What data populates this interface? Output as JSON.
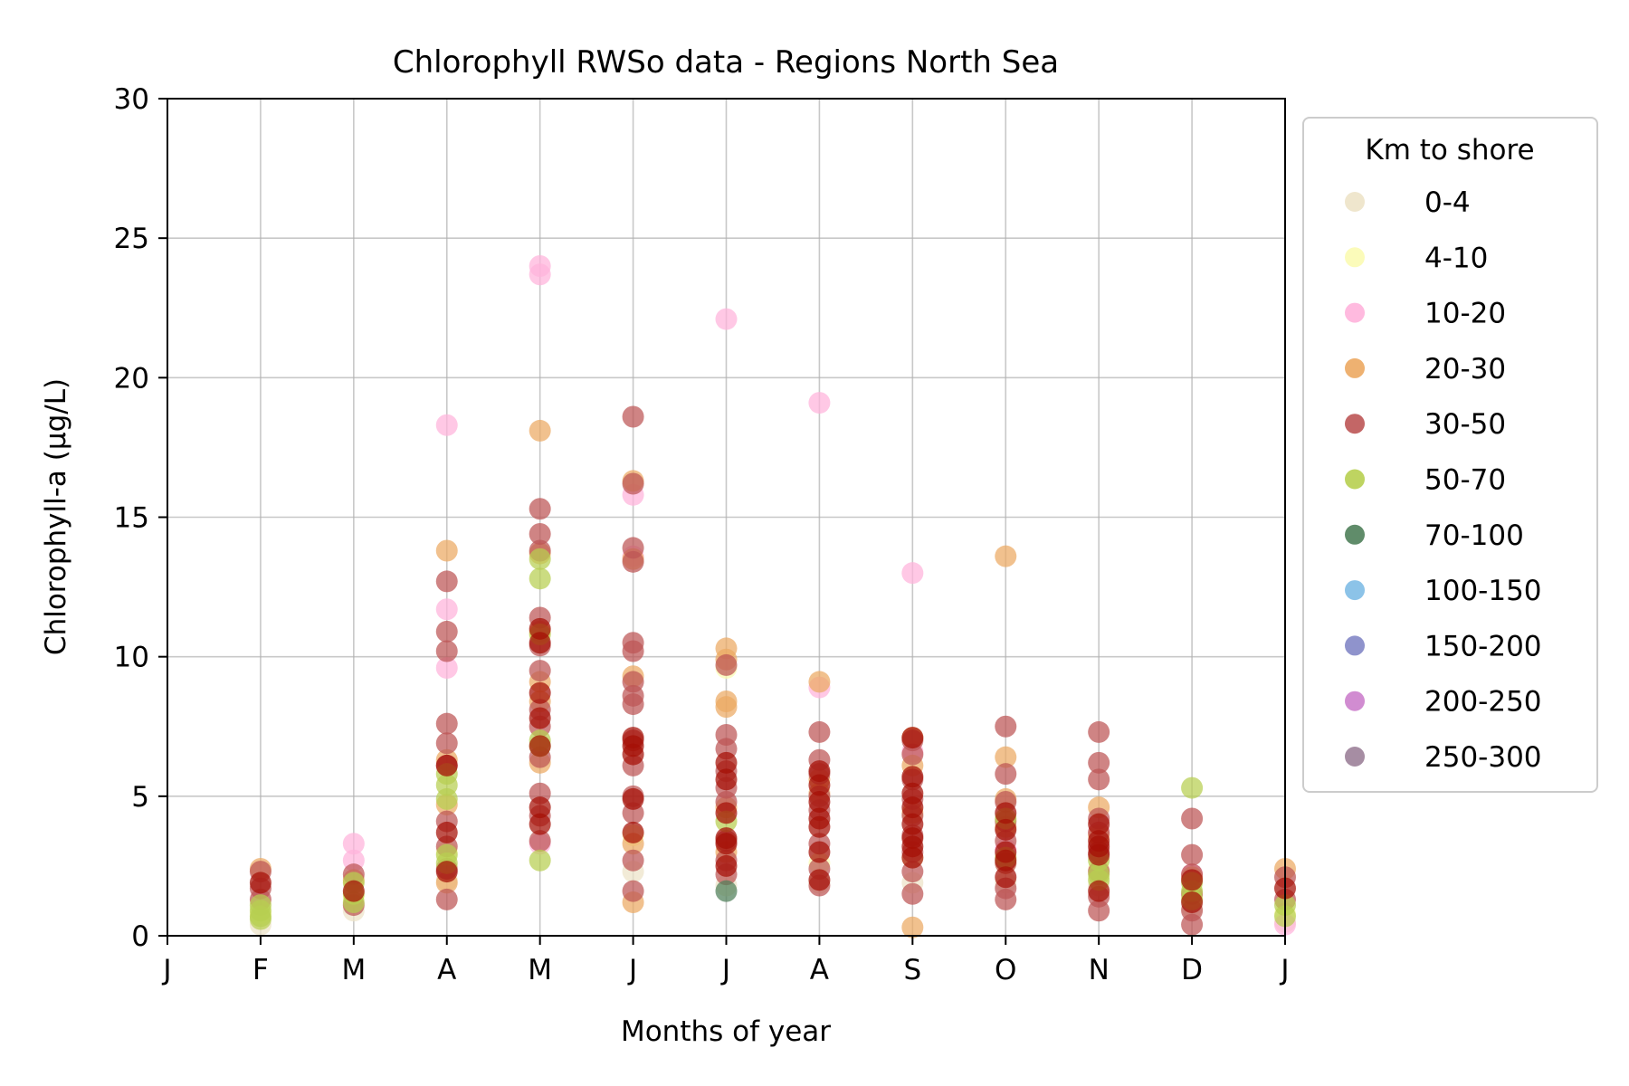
{
  "chart_data": {
    "type": "scatter",
    "title": "Chlorophyll RWSo data - Regions North Sea",
    "xlabel": "Months of year",
    "ylabel": "Chlorophyll-a (µg/L)",
    "xlim": [
      1,
      13
    ],
    "ylim": [
      0,
      30
    ],
    "x_ticks": [
      1,
      2,
      3,
      4,
      5,
      6,
      7,
      8,
      9,
      10,
      11,
      12,
      13
    ],
    "x_tick_labels": [
      "J",
      "F",
      "M",
      "A",
      "M",
      "J",
      "J",
      "A",
      "S",
      "O",
      "N",
      "D",
      "J"
    ],
    "y_ticks": [
      0,
      5,
      10,
      15,
      20,
      25,
      30
    ],
    "y_tick_labels": [
      "0",
      "5",
      "10",
      "15",
      "20",
      "25",
      "30"
    ],
    "grid": true,
    "legend": {
      "title": "Km to shore",
      "position": "outside-right"
    },
    "series": [
      {
        "name": "0-4",
        "color": "#ede3c8",
        "points": [
          [
            2.0,
            0.4
          ],
          [
            3.0,
            0.9
          ],
          [
            4.0,
            2.0
          ],
          [
            6.0,
            2.3
          ],
          [
            7.0,
            1.8
          ],
          [
            8.0,
            1.9
          ],
          [
            9.0,
            1.9
          ],
          [
            10.0,
            1.9
          ],
          [
            11.0,
            1.8
          ],
          [
            12.0,
            1.0
          ],
          [
            13.0,
            0.5
          ]
        ]
      },
      {
        "name": "4-10",
        "color": "#fbfbb2",
        "points": [
          [
            2.0,
            0.8
          ],
          [
            3.0,
            1.4
          ],
          [
            4.0,
            3.0
          ],
          [
            6.0,
            3.6
          ],
          [
            7.0,
            9.6
          ],
          [
            8.0,
            2.6
          ],
          [
            9.0,
            2.8
          ],
          [
            10.0,
            2.6
          ],
          [
            11.0,
            2.4
          ],
          [
            12.0,
            1.4
          ],
          [
            13.0,
            0.8
          ]
        ]
      },
      {
        "name": "10-20",
        "color": "#ffb3db",
        "points": [
          [
            3.0,
            3.3
          ],
          [
            3.0,
            2.7
          ],
          [
            4.0,
            18.3
          ],
          [
            4.0,
            11.7
          ],
          [
            4.0,
            9.6
          ],
          [
            5.0,
            24.0
          ],
          [
            5.0,
            23.7
          ],
          [
            5.0,
            3.3
          ],
          [
            6.0,
            15.8
          ],
          [
            6.0,
            13.6
          ],
          [
            7.0,
            22.1
          ],
          [
            8.0,
            19.1
          ],
          [
            8.0,
            8.9
          ],
          [
            9.0,
            13.0
          ],
          [
            9.0,
            6.6
          ],
          [
            10.0,
            3.1
          ],
          [
            11.0,
            3.7
          ],
          [
            12.0,
            2.2
          ],
          [
            13.0,
            0.4
          ]
        ]
      },
      {
        "name": "20-30",
        "color": "#eca962",
        "points": [
          [
            2.0,
            2.4
          ],
          [
            3.0,
            2.0
          ],
          [
            4.0,
            13.8
          ],
          [
            4.0,
            6.3
          ],
          [
            4.0,
            4.7
          ],
          [
            4.0,
            1.9
          ],
          [
            5.0,
            18.1
          ],
          [
            5.0,
            13.7
          ],
          [
            5.0,
            10.9
          ],
          [
            5.0,
            9.1
          ],
          [
            5.0,
            8.4
          ],
          [
            5.0,
            6.2
          ],
          [
            6.0,
            16.3
          ],
          [
            6.0,
            13.5
          ],
          [
            6.0,
            9.3
          ],
          [
            6.0,
            3.3
          ],
          [
            6.0,
            1.2
          ],
          [
            7.0,
            10.3
          ],
          [
            7.0,
            9.9
          ],
          [
            7.0,
            8.4
          ],
          [
            7.0,
            8.2
          ],
          [
            7.0,
            4.6
          ],
          [
            7.0,
            3.0
          ],
          [
            8.0,
            9.1
          ],
          [
            8.0,
            5.6
          ],
          [
            8.0,
            5.1
          ],
          [
            9.0,
            7.1
          ],
          [
            9.0,
            6.1
          ],
          [
            9.0,
            4.4
          ],
          [
            9.0,
            0.3
          ],
          [
            10.0,
            13.6
          ],
          [
            10.0,
            6.4
          ],
          [
            10.0,
            4.9
          ],
          [
            10.0,
            3.9
          ],
          [
            11.0,
            4.6
          ],
          [
            11.0,
            3.6
          ],
          [
            12.0,
            2.1
          ],
          [
            13.0,
            2.4
          ]
        ]
      },
      {
        "name": "30-50",
        "color": "#bd5555",
        "points": [
          [
            2.0,
            2.3
          ],
          [
            2.0,
            1.7
          ],
          [
            2.0,
            1.3
          ],
          [
            3.0,
            2.2
          ],
          [
            3.0,
            1.1
          ],
          [
            4.0,
            12.7
          ],
          [
            4.0,
            10.9
          ],
          [
            4.0,
            10.2
          ],
          [
            4.0,
            7.6
          ],
          [
            4.0,
            6.9
          ],
          [
            4.0,
            6.1
          ],
          [
            4.0,
            4.1
          ],
          [
            4.0,
            3.2
          ],
          [
            4.0,
            2.4
          ],
          [
            4.0,
            1.3
          ],
          [
            5.0,
            15.3
          ],
          [
            5.0,
            14.4
          ],
          [
            5.0,
            13.8
          ],
          [
            5.0,
            11.4
          ],
          [
            5.0,
            10.4
          ],
          [
            5.0,
            9.5
          ],
          [
            5.0,
            8.1
          ],
          [
            5.0,
            7.5
          ],
          [
            5.0,
            6.4
          ],
          [
            5.0,
            5.1
          ],
          [
            5.0,
            4.3
          ],
          [
            5.0,
            3.4
          ],
          [
            6.0,
            18.6
          ],
          [
            6.0,
            16.2
          ],
          [
            6.0,
            13.9
          ],
          [
            6.0,
            13.4
          ],
          [
            6.0,
            10.5
          ],
          [
            6.0,
            10.2
          ],
          [
            6.0,
            9.1
          ],
          [
            6.0,
            8.6
          ],
          [
            6.0,
            8.3
          ],
          [
            6.0,
            7.0
          ],
          [
            6.0,
            6.1
          ],
          [
            6.0,
            5.0
          ],
          [
            6.0,
            4.4
          ],
          [
            6.0,
            2.7
          ],
          [
            6.0,
            1.6
          ],
          [
            7.0,
            9.7
          ],
          [
            7.0,
            7.2
          ],
          [
            7.0,
            6.7
          ],
          [
            7.0,
            5.9
          ],
          [
            7.0,
            5.3
          ],
          [
            7.0,
            4.8
          ],
          [
            7.0,
            3.4
          ],
          [
            7.0,
            2.7
          ],
          [
            7.0,
            2.2
          ],
          [
            8.0,
            7.3
          ],
          [
            8.0,
            6.3
          ],
          [
            8.0,
            5.8
          ],
          [
            8.0,
            5.0
          ],
          [
            8.0,
            4.5
          ],
          [
            8.0,
            3.3
          ],
          [
            8.0,
            2.4
          ],
          [
            8.0,
            1.8
          ],
          [
            9.0,
            7.0
          ],
          [
            9.0,
            6.5
          ],
          [
            9.0,
            5.6
          ],
          [
            9.0,
            4.9
          ],
          [
            9.0,
            4.3
          ],
          [
            9.0,
            3.6
          ],
          [
            9.0,
            3.0
          ],
          [
            9.0,
            2.3
          ],
          [
            9.0,
            1.5
          ],
          [
            10.0,
            7.5
          ],
          [
            10.0,
            5.8
          ],
          [
            10.0,
            4.8
          ],
          [
            10.0,
            4.1
          ],
          [
            10.0,
            3.4
          ],
          [
            10.0,
            2.6
          ],
          [
            10.0,
            1.7
          ],
          [
            10.0,
            1.3
          ],
          [
            11.0,
            7.3
          ],
          [
            11.0,
            6.2
          ],
          [
            11.0,
            5.6
          ],
          [
            11.0,
            4.2
          ],
          [
            11.0,
            3.7
          ],
          [
            11.0,
            3.0
          ],
          [
            11.0,
            2.3
          ],
          [
            11.0,
            1.4
          ],
          [
            11.0,
            0.9
          ],
          [
            12.0,
            4.2
          ],
          [
            12.0,
            2.9
          ],
          [
            12.0,
            2.2
          ],
          [
            12.0,
            1.5
          ],
          [
            12.0,
            0.9
          ],
          [
            12.0,
            0.4
          ],
          [
            13.0,
            2.1
          ],
          [
            13.0,
            1.3
          ]
        ]
      },
      {
        "name": "50-70",
        "color": "#b7cf50",
        "points": [
          [
            2.0,
            1.1
          ],
          [
            2.0,
            0.9
          ],
          [
            2.0,
            0.7
          ],
          [
            2.0,
            0.6
          ],
          [
            3.0,
            1.9
          ],
          [
            3.0,
            1.5
          ],
          [
            3.0,
            1.2
          ],
          [
            4.0,
            5.8
          ],
          [
            4.0,
            5.4
          ],
          [
            4.0,
            4.9
          ],
          [
            4.0,
            2.9
          ],
          [
            4.0,
            2.6
          ],
          [
            5.0,
            13.5
          ],
          [
            5.0,
            12.8
          ],
          [
            5.0,
            10.8
          ],
          [
            5.0,
            7.0
          ],
          [
            5.0,
            6.8
          ],
          [
            5.0,
            2.7
          ],
          [
            7.0,
            4.1
          ],
          [
            10.0,
            4.2
          ],
          [
            10.0,
            2.8
          ],
          [
            11.0,
            2.7
          ],
          [
            11.0,
            2.2
          ],
          [
            11.0,
            2.0
          ],
          [
            12.0,
            5.3
          ],
          [
            12.0,
            1.9
          ],
          [
            12.0,
            1.6
          ],
          [
            12.0,
            1.3
          ],
          [
            13.0,
            1.1
          ],
          [
            13.0,
            0.7
          ]
        ]
      },
      {
        "name": "70-100",
        "color": "#4f7f5a",
        "points": [
          [
            7.0,
            1.6
          ]
        ]
      },
      {
        "name": "100-150",
        "color": "#7fbde6",
        "points": []
      },
      {
        "name": "150-200",
        "color": "#8387c6",
        "points": []
      },
      {
        "name": "200-250",
        "color": "#cc7fcc",
        "points": []
      },
      {
        "name": "250-300",
        "color": "#9c8199",
        "points": []
      },
      {
        "name": "",
        "color": "#a50f05",
        "points": [
          [
            2.0,
            1.9
          ],
          [
            3.0,
            1.6
          ],
          [
            4.0,
            6.1
          ],
          [
            4.0,
            3.7
          ],
          [
            4.0,
            2.3
          ],
          [
            5.0,
            11.0
          ],
          [
            5.0,
            10.5
          ],
          [
            5.0,
            8.7
          ],
          [
            5.0,
            7.8
          ],
          [
            5.0,
            6.8
          ],
          [
            5.0,
            4.6
          ],
          [
            5.0,
            4.0
          ],
          [
            6.0,
            7.1
          ],
          [
            6.0,
            6.8
          ],
          [
            6.0,
            6.5
          ],
          [
            6.0,
            4.9
          ],
          [
            6.0,
            3.7
          ],
          [
            7.0,
            6.2
          ],
          [
            7.0,
            5.6
          ],
          [
            7.0,
            4.4
          ],
          [
            7.0,
            3.5
          ],
          [
            7.0,
            3.3
          ],
          [
            7.0,
            2.5
          ],
          [
            8.0,
            5.9
          ],
          [
            8.0,
            5.4
          ],
          [
            8.0,
            4.8
          ],
          [
            8.0,
            4.2
          ],
          [
            8.0,
            3.9
          ],
          [
            8.0,
            3.0
          ],
          [
            8.0,
            2.0
          ],
          [
            9.0,
            7.1
          ],
          [
            9.0,
            5.7
          ],
          [
            9.0,
            5.1
          ],
          [
            9.0,
            4.6
          ],
          [
            9.0,
            4.0
          ],
          [
            9.0,
            3.5
          ],
          [
            9.0,
            3.2
          ],
          [
            9.0,
            2.8
          ],
          [
            10.0,
            4.4
          ],
          [
            10.0,
            3.8
          ],
          [
            10.0,
            3.0
          ],
          [
            10.0,
            2.7
          ],
          [
            10.0,
            2.1
          ],
          [
            11.0,
            4.0
          ],
          [
            11.0,
            3.4
          ],
          [
            11.0,
            3.2
          ],
          [
            11.0,
            2.9
          ],
          [
            11.0,
            1.6
          ],
          [
            12.0,
            2.0
          ],
          [
            12.0,
            1.2
          ],
          [
            13.0,
            1.7
          ]
        ]
      }
    ]
  }
}
